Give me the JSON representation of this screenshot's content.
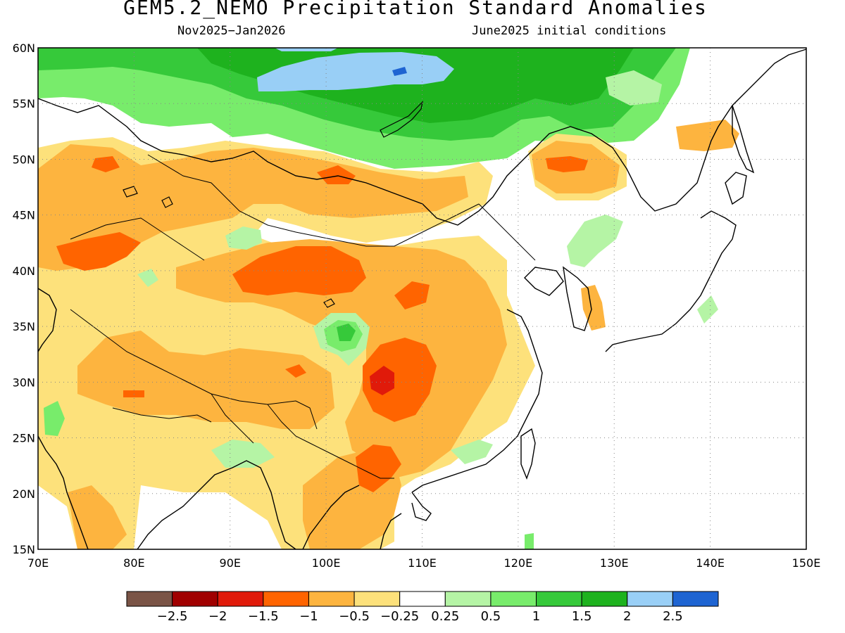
{
  "title": "GEM5.2_NEMO Precipitation Standard Anomalies",
  "subtitle_left": "Nov2025−Jan2026",
  "subtitle_right": "June2025 initial conditions",
  "map": {
    "lon_range": [
      70,
      150
    ],
    "lat_range": [
      15,
      60
    ],
    "lon_ticks": [
      "70E",
      "80E",
      "90E",
      "100E",
      "110E",
      "120E",
      "130E",
      "140E",
      "150E"
    ],
    "lat_ticks": [
      "15N",
      "20N",
      "25N",
      "30N",
      "35N",
      "40N",
      "45N",
      "50N",
      "55N",
      "60N"
    ],
    "grid": "dotted"
  },
  "colorbar": {
    "colors": [
      "#7a5446",
      "#a00000",
      "#e01a0a",
      "#ff6400",
      "#fdb43f",
      "#fde17b",
      "#ffffff",
      "#b5f4a5",
      "#78ec6b",
      "#36c93a",
      "#1eb21e",
      "#99cff6",
      "#1e64d2"
    ],
    "labels": [
      "−2.5",
      "−2",
      "−1.5",
      "−1",
      "−0.5",
      "−0.25",
      "0.25",
      "0.5",
      "1",
      "1.5",
      "2",
      "2.5"
    ]
  }
}
